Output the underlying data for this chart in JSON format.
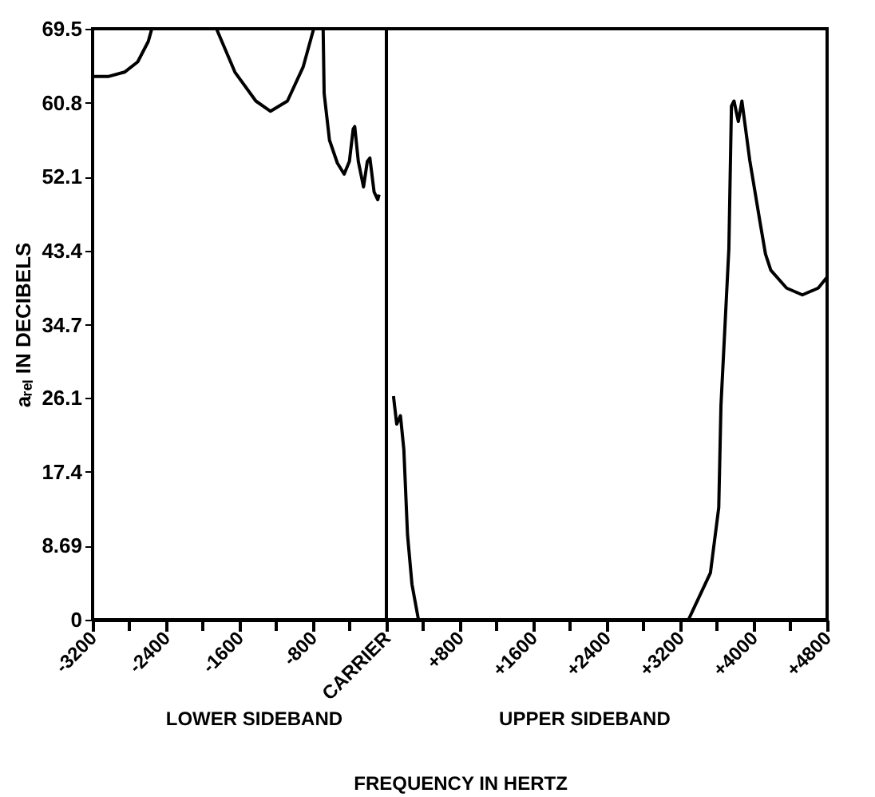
{
  "chart_data": {
    "type": "line",
    "xlabel": "FREQUENCY IN HERTZ",
    "ylabel": "aᵣₑₗ IN DECIBELS",
    "annotations": [
      "LOWER SIDEBAND",
      "UPPER SIDEBAND"
    ],
    "x": [
      -3200,
      -3024,
      -2852,
      -2709,
      -2594,
      -2555,
      -2200,
      -1851,
      -1650,
      -1422,
      -1262,
      -1078,
      -907,
      -792,
      -740,
      -689,
      -678,
      -620,
      -534,
      -460,
      -403,
      -362,
      -345,
      -306,
      -249,
      -208,
      -180,
      -134,
      -94,
      -80,
      0,
      77,
      112,
      153,
      190,
      230,
      278,
      349,
      1800,
      3290,
      3529,
      3620,
      3644,
      3730,
      3758,
      3786,
      3833,
      3872,
      3958,
      4072,
      4129,
      4187,
      4359,
      4531,
      4703,
      4800
    ],
    "series": [
      {
        "color": "#000000",
        "values": [
          63.9,
          63.9,
          64.4,
          65.6,
          68.0,
          69.5,
          null,
          69.5,
          64.4,
          61.0,
          59.8,
          61.0,
          65.0,
          69.5,
          null,
          69.5,
          61.9,
          56.4,
          53.7,
          52.4,
          53.9,
          57.7,
          58.0,
          53.9,
          50.9,
          53.9,
          54.3,
          50.3,
          49.4,
          50.0,
          null,
          26.3,
          23.0,
          24.0,
          20.0,
          10.0,
          4.2,
          0,
          null,
          0,
          5.5,
          13.2,
          25.2,
          43.6,
          60.4,
          61.0,
          58.6,
          61.0,
          54.0,
          46.6,
          43.0,
          41.1,
          39.0,
          38.2,
          39.0,
          40.3
        ]
      }
    ],
    "xlim": [
      -3200,
      4800
    ],
    "xticks": [
      -3200,
      {
        "value": -2800,
        "label": null
      },
      -2400,
      {
        "value": -2000,
        "label": null
      },
      -1600,
      {
        "value": -1200,
        "label": null
      },
      -800,
      {
        "value": -400,
        "label": null
      },
      {
        "value": 0,
        "label": "CARRIER"
      },
      {
        "value": 400,
        "label": null
      },
      {
        "value": 800,
        "label": "+800"
      },
      {
        "value": 1200,
        "label": null
      },
      {
        "value": 1600,
        "label": "+1600"
      },
      {
        "value": 2000,
        "label": null
      },
      {
        "value": 2400,
        "label": "+2400"
      },
      {
        "value": 2800,
        "label": null
      },
      {
        "value": 3200,
        "label": "+3200"
      },
      {
        "value": 3600,
        "label": null
      },
      {
        "value": 4000,
        "label": "+4000"
      },
      {
        "value": 4400,
        "label": null
      },
      {
        "value": 4800,
        "label": "+4800"
      }
    ],
    "ylim": [
      0,
      69.5
    ],
    "yticks": [
      0,
      8.69,
      17.4,
      26.1,
      34.7,
      43.4,
      52.1,
      60.8,
      69.5
    ],
    "ref_lines": [
      {
        "axis": "x",
        "value": 0
      }
    ],
    "grid": false,
    "marker": "none",
    "line_style": "solid"
  }
}
